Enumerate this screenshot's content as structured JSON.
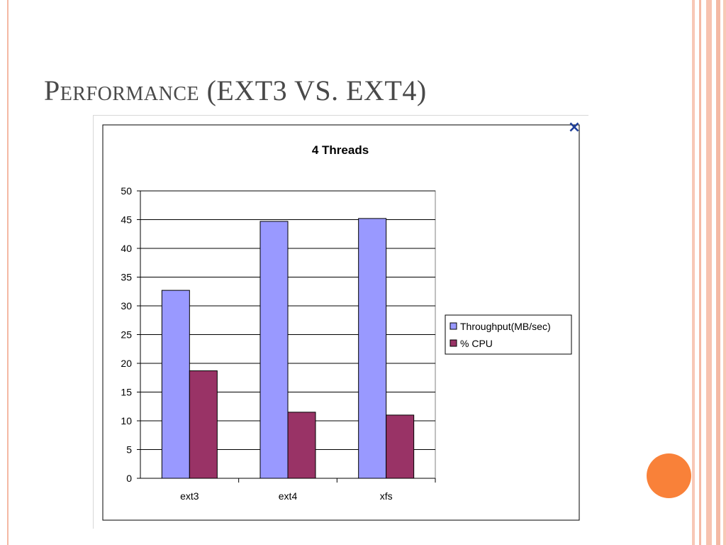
{
  "slide": {
    "title": "Performance (EXT3 VS. EXT4)",
    "close_icon": "×",
    "accent_color": "#f98139",
    "stripe_color": "#f4b9a4"
  },
  "chart_data": {
    "type": "bar",
    "title": "4 Threads",
    "categories": [
      "ext3",
      "ext4",
      "xfs"
    ],
    "series": [
      {
        "name": "Throughput(MB/sec)",
        "values": [
          32.7,
          44.7,
          45.2
        ],
        "color": "#9999ff"
      },
      {
        "name": "% CPU",
        "values": [
          18.7,
          11.5,
          11.0
        ],
        "color": "#993366"
      }
    ],
    "ylim": [
      0,
      50
    ],
    "yticks": [
      "0",
      "5",
      "10",
      "15",
      "20",
      "25",
      "30",
      "35",
      "40",
      "45",
      "50"
    ],
    "grid": true,
    "legend": "right",
    "xlabel": "",
    "ylabel": ""
  }
}
